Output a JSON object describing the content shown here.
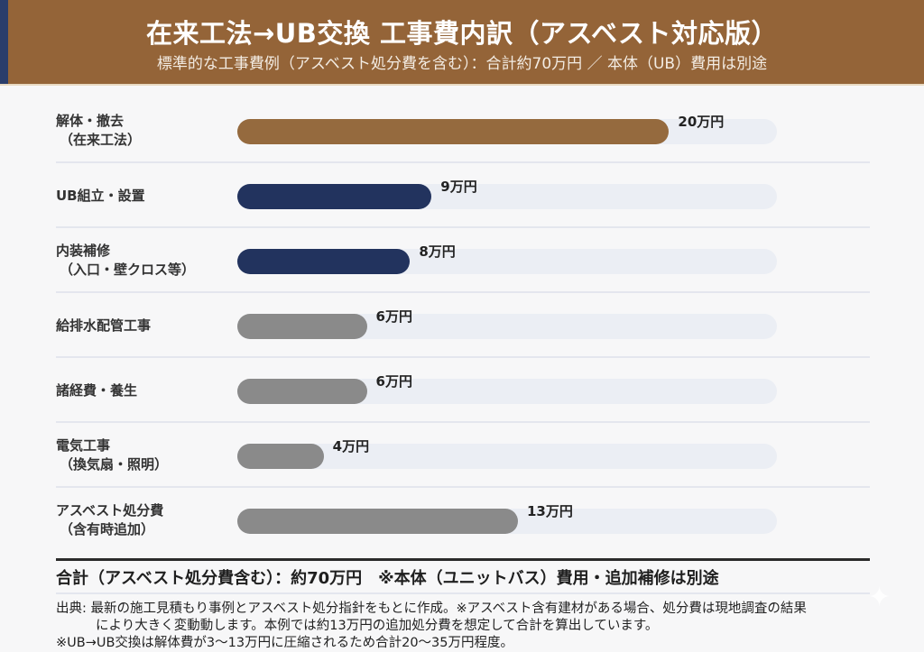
{
  "header": {
    "title": "在来工法→UB交換 工事費内訳（アスベスト対応版）",
    "subtitle": "標準的な工事費例（アスベスト処分費を含む）：合計約70万円 ／ 本体（UB）費用は別途"
  },
  "colors": {
    "header_bg": "#946438",
    "accent_stripe": "#2a3d6b",
    "brown_bar": "#956a3e",
    "navy_bar": "#22335e",
    "gray_bar": "#8a8a8a",
    "track": "#ebeef4"
  },
  "chart_data": {
    "type": "bar",
    "orientation": "horizontal",
    "title": "在来工法→UB交換 工事費内訳（アスベスト対応版）",
    "unit": "万円",
    "xlim": [
      0,
      25
    ],
    "categories": [
      {
        "line1": "解体・撤去",
        "line2": "（在来工法）"
      },
      {
        "line1": "UB組立・設置",
        "line2": ""
      },
      {
        "line1": "内装補修",
        "line2": "（入口・壁クロス等）"
      },
      {
        "line1": "給排水配管工事",
        "line2": ""
      },
      {
        "line1": "諸経費・養生",
        "line2": ""
      },
      {
        "line1": "電気工事",
        "line2": "（換気扇・照明）"
      },
      {
        "line1": "アスベスト処分費",
        "line2": "（含有時追加）"
      }
    ],
    "values": [
      20,
      9,
      8,
      6,
      6,
      4,
      13
    ],
    "value_labels": [
      "20万円",
      "9万円",
      "8万円",
      "6万円",
      "6万円",
      "4万円",
      "13万円"
    ],
    "bar_colors": [
      "brown",
      "navy",
      "navy",
      "gray",
      "gray",
      "gray",
      "gray"
    ]
  },
  "footer": {
    "total": "合計（アスベスト処分費含む）：約70万円　※本体（ユニットバス）費用・追加補修は別途",
    "source_line1": "出典: 最新の施工見積もり事例とアスベスト処分指針をもとに作成。※アスベスト含有建材がある場合、処分費は現地調査の結果",
    "source_line2": "により大きく変動動します。本例では約13万円の追加処分費を想定して合計を算出しています。",
    "source_line3": "※UB→UB交換は解体費が3〜13万円に圧縮されるため合計20〜35万円程度。"
  }
}
